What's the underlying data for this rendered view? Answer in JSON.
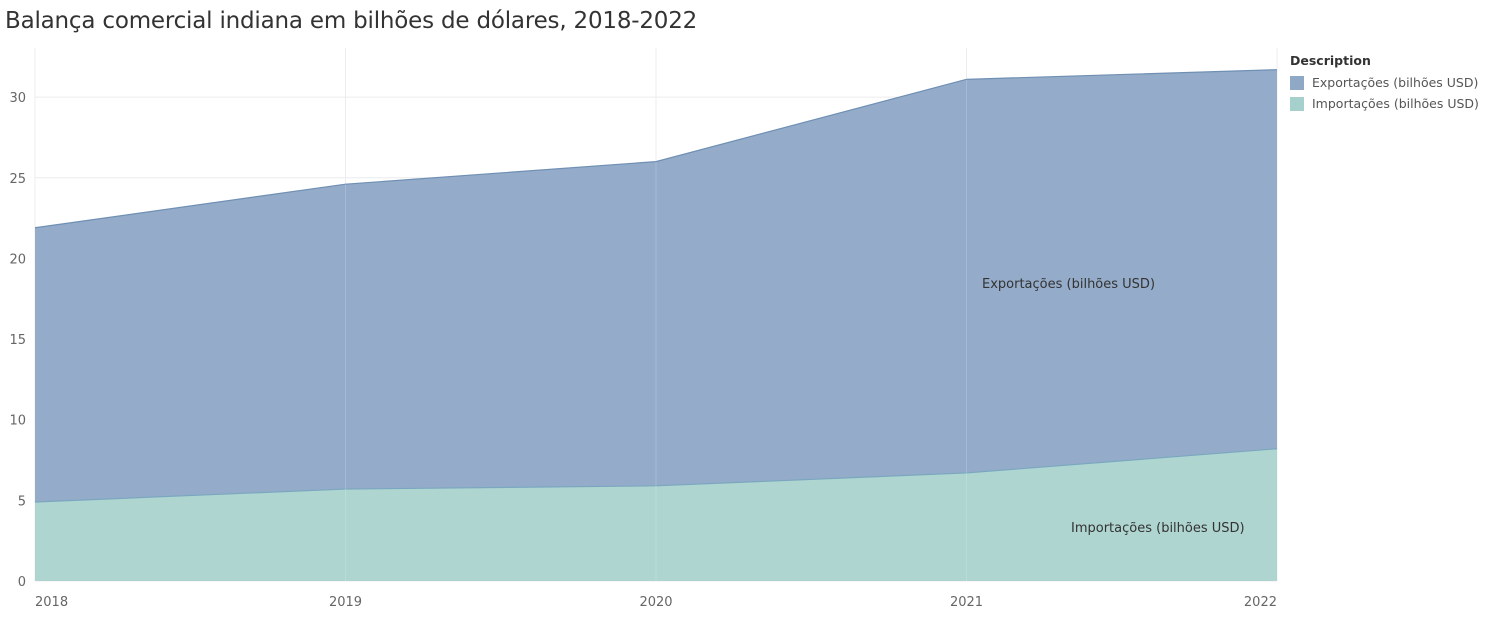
{
  "chart_data": {
    "type": "area",
    "title": "Balança comercial indiana em bilhões de dólares, 2018-2022",
    "xlabel": "",
    "ylabel": "",
    "x": [
      "2018",
      "2019",
      "2020",
      "2021",
      "2022"
    ],
    "ylim": [
      0,
      32
    ],
    "yticks": [
      0,
      5,
      10,
      15,
      20,
      25,
      30
    ],
    "stacked": true,
    "grid": true,
    "legend": {
      "title": "Description",
      "placement": "top-right"
    },
    "series": [
      {
        "name": "Importações (bilhões USD)",
        "values": [
          4.9,
          5.7,
          5.9,
          6.7,
          8.2
        ],
        "color": "#a6d0cb",
        "line_color": "#7aa7c0"
      },
      {
        "name": "Exportações (bilhões USD)",
        "values": [
          17.0,
          18.9,
          20.1,
          24.4,
          23.5
        ],
        "color": "#8ea8c6",
        "line_color": "#6f8fb3"
      }
    ],
    "stacked_totals": [
      21.9,
      24.6,
      26.0,
      31.1,
      31.7
    ],
    "annotations": [
      {
        "text": "Exportações (bilhões USD)",
        "series": "Exportações (bilhões USD)"
      },
      {
        "text": "Importações (bilhões USD)",
        "series": "Importações (bilhões USD)"
      }
    ]
  }
}
